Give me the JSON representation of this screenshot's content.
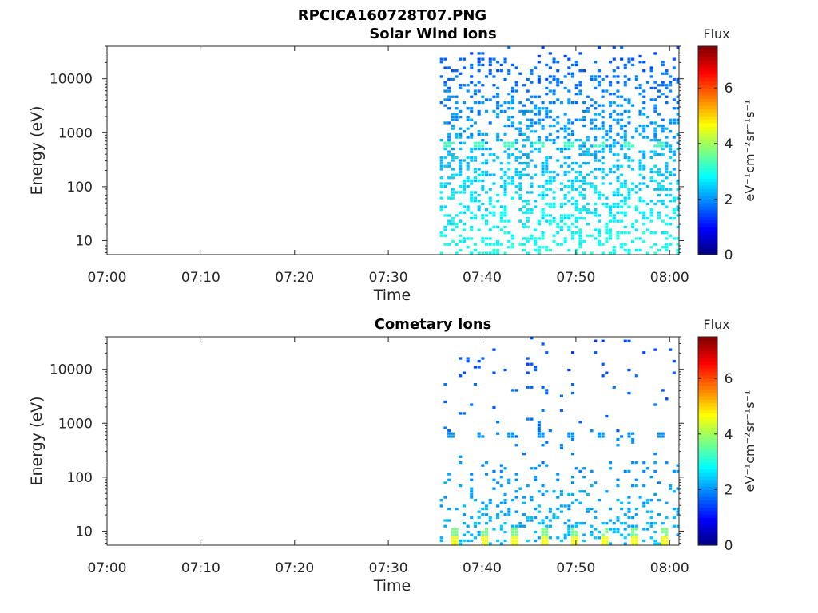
{
  "figure_title": "RPCICA160728T07.PNG",
  "chart_data": [
    {
      "type": "heatmap",
      "title": "Solar Wind Ions",
      "xlabel": "Time",
      "ylabel": "Energy (eV)",
      "x_tick_labels": [
        "07:00",
        "07:10",
        "07:20",
        "07:30",
        "07:40",
        "07:50",
        "08:00"
      ],
      "x_tick_minutes": [
        0,
        10,
        20,
        30,
        40,
        50,
        60
      ],
      "xlim_minutes": [
        0,
        61
      ],
      "ylim": [
        5.5,
        40000
      ],
      "y_scale": "log",
      "y_tick_labels": [
        "10",
        "100",
        "1000",
        "10000"
      ],
      "y_tick_values": [
        10,
        100,
        1000,
        10000
      ],
      "data_start_minute": 35.5,
      "colorbar": {
        "title": "Flux",
        "label": "eV⁻¹cm⁻²sr⁻¹s⁻¹",
        "range": [
          0,
          7.5
        ],
        "tick_labels": [
          "0",
          "2",
          "4",
          "6"
        ],
        "tick_values": [
          0,
          2,
          4,
          6
        ],
        "colormap": "jet"
      },
      "sweep_peaks_minutes": [
        36.3,
        39.5,
        42.7,
        45.9,
        49.1,
        52.3,
        55.5,
        58.7
      ],
      "sweep_peak_energy_eV": 600,
      "sweep_peak_flux": 3.3
    },
    {
      "type": "heatmap",
      "title": "Cometary Ions",
      "xlabel": "Time",
      "ylabel": "Energy (eV)",
      "x_tick_labels": [
        "07:00",
        "07:10",
        "07:20",
        "07:30",
        "07:40",
        "07:50",
        "08:00"
      ],
      "x_tick_minutes": [
        0,
        10,
        20,
        30,
        40,
        50,
        60
      ],
      "xlim_minutes": [
        0,
        61
      ],
      "ylim": [
        5.5,
        40000
      ],
      "y_scale": "log",
      "y_tick_labels": [
        "10",
        "100",
        "1000",
        "10000"
      ],
      "y_tick_values": [
        10,
        100,
        1000,
        10000
      ],
      "data_start_minute": 35.5,
      "colorbar": {
        "title": "Flux",
        "label": "eV⁻¹cm⁻²sr⁻¹s⁻¹",
        "range": [
          0,
          7.5
        ],
        "tick_labels": [
          "0",
          "2",
          "4",
          "6"
        ],
        "tick_values": [
          0,
          2,
          4,
          6
        ],
        "colormap": "jet"
      },
      "low_energy_peaks_minutes": [
        37.0,
        40.2,
        43.4,
        46.6,
        49.8,
        53.0,
        56.2,
        59.4
      ],
      "low_energy_peak_flux": 4.6
    }
  ]
}
